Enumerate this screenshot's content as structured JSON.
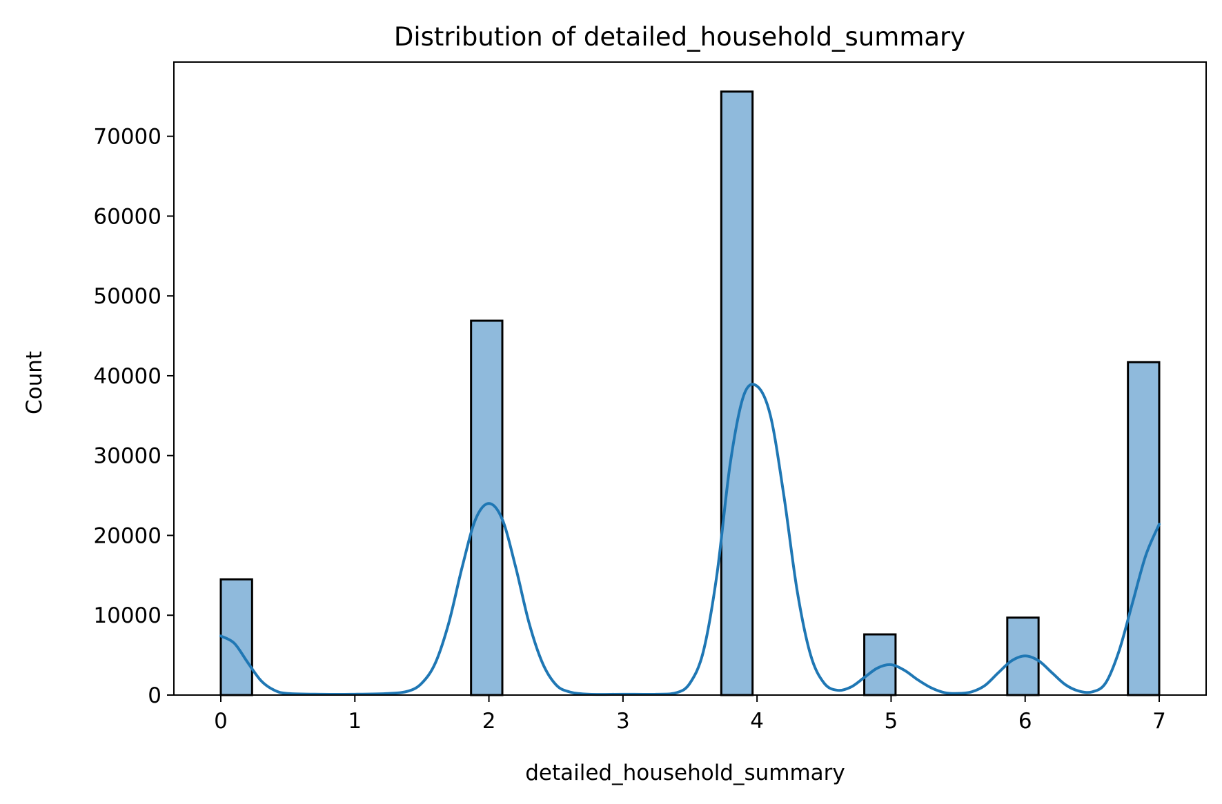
{
  "chart_data": {
    "type": "bar",
    "title": "Distribution of detailed_household_summary",
    "xlabel": "detailed_household_summary",
    "ylabel": "Count",
    "xlim": [
      -0.35,
      7.35
    ],
    "ylim": [
      0,
      79300
    ],
    "xticks": [
      0,
      1,
      2,
      3,
      4,
      5,
      6,
      7
    ],
    "xtick_labels": [
      "0",
      "1",
      "2",
      "3",
      "4",
      "5",
      "6",
      "7"
    ],
    "yticks": [
      0,
      10000,
      20000,
      30000,
      40000,
      50000,
      60000,
      70000
    ],
    "ytick_labels": [
      "0",
      "10000",
      "20000",
      "30000",
      "40000",
      "50000",
      "60000",
      "70000"
    ],
    "grid": false,
    "bar_color": "#8fbadc",
    "edge_color": "#000000",
    "kde_color": "#1f77b4",
    "bins": [
      {
        "x0": 0.0,
        "x1": 0.2333,
        "count": 14500
      },
      {
        "x0": 1.8667,
        "x1": 2.1,
        "count": 46900
      },
      {
        "x0": 3.7333,
        "x1": 3.9667,
        "count": 75600
      },
      {
        "x0": 4.8,
        "x1": 5.0333,
        "count": 7600
      },
      {
        "x0": 5.8667,
        "x1": 6.1,
        "count": 9700
      },
      {
        "x0": 6.7667,
        "x1": 7.0,
        "count": 41700
      }
    ],
    "kde": {
      "x": [
        0.0,
        0.1,
        0.2,
        0.3,
        0.4,
        0.5,
        0.75,
        1.0,
        1.25,
        1.4,
        1.5,
        1.6,
        1.7,
        1.8,
        1.9,
        2.0,
        2.1,
        2.2,
        2.3,
        2.4,
        2.5,
        2.6,
        2.75,
        3.0,
        3.25,
        3.4,
        3.5,
        3.6,
        3.7,
        3.8,
        3.9,
        4.0,
        4.1,
        4.2,
        4.3,
        4.4,
        4.5,
        4.6,
        4.7,
        4.8,
        4.9,
        5.0,
        5.1,
        5.2,
        5.3,
        5.4,
        5.5,
        5.6,
        5.7,
        5.8,
        5.9,
        6.0,
        6.1,
        6.2,
        6.3,
        6.4,
        6.5,
        6.6,
        6.7,
        6.8,
        6.9,
        7.0
      ],
      "y": [
        7400,
        6500,
        4100,
        1800,
        600,
        200,
        100,
        100,
        200,
        500,
        1500,
        4000,
        9000,
        16000,
        22000,
        24000,
        22000,
        16000,
        9000,
        4000,
        1300,
        400,
        100,
        100,
        100,
        300,
        1500,
        5500,
        15000,
        29000,
        37500,
        38700,
        35000,
        25000,
        13000,
        5000,
        1500,
        600,
        1000,
        2200,
        3400,
        3800,
        3100,
        1900,
        900,
        300,
        200,
        400,
        1200,
        2800,
        4300,
        4900,
        4300,
        2800,
        1300,
        500,
        400,
        1500,
        5500,
        11500,
        17500,
        21400
      ]
    }
  }
}
